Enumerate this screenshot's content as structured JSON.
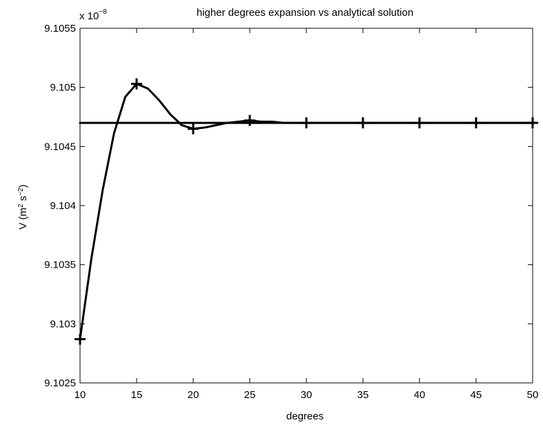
{
  "chart_data": {
    "type": "line",
    "title": "higher degrees expansion vs analytical solution",
    "xlabel": "degrees",
    "ylabel": {
      "base": "V (m",
      "sup1": "2",
      "mid": " s",
      "sup2": "−2",
      "end": ")"
    },
    "exponent_label": {
      "base": "x 10",
      "sup": "−8"
    },
    "xlim": [
      10,
      50
    ],
    "ylim": [
      9.1025,
      9.1055
    ],
    "x_ticks": [
      10,
      15,
      20,
      25,
      30,
      35,
      40,
      45,
      50
    ],
    "x_tick_labels": [
      "10",
      "15",
      "20",
      "25",
      "30",
      "35",
      "40",
      "45",
      "50"
    ],
    "y_ticks": [
      9.1025,
      9.103,
      9.1035,
      9.104,
      9.1045,
      9.105,
      9.1055
    ],
    "y_tick_labels": [
      "9.1025",
      "9.103",
      "9.1035",
      "9.104",
      "9.1045",
      "9.105",
      "9.1055"
    ],
    "grid": false,
    "legend": "none",
    "series": [
      {
        "values": [
          [
            10,
            9.10287
          ],
          [
            11,
            9.10355
          ],
          [
            12,
            9.10413
          ],
          [
            13,
            9.10461
          ],
          [
            14,
            9.10492
          ],
          [
            15,
            9.10503
          ],
          [
            16,
            9.10499
          ],
          [
            17,
            9.10489
          ],
          [
            18,
            9.10477
          ],
          [
            19,
            9.10468
          ],
          [
            20,
            9.10465
          ],
          [
            21,
            9.10466
          ],
          [
            22,
            9.10468
          ],
          [
            23,
            9.1047
          ],
          [
            24,
            9.10471
          ],
          [
            25,
            9.10472
          ],
          [
            26,
            9.10471
          ],
          [
            27,
            9.10471
          ],
          [
            28,
            9.1047
          ],
          [
            29,
            9.1047
          ],
          [
            30,
            9.1047
          ],
          [
            35,
            9.1047
          ],
          [
            40,
            9.1047
          ],
          [
            45,
            9.1047
          ],
          [
            50,
            9.1047
          ]
        ],
        "markers": [
          [
            10,
            9.10287
          ],
          [
            15,
            9.10503
          ],
          [
            20,
            9.10465
          ],
          [
            25,
            9.10472
          ],
          [
            30,
            9.1047
          ],
          [
            35,
            9.1047
          ],
          [
            40,
            9.1047
          ],
          [
            45,
            9.1047
          ],
          [
            50,
            9.1047
          ]
        ],
        "marker": "+",
        "color": "#000000"
      },
      {
        "values": [
          [
            10,
            9.1047
          ],
          [
            50,
            9.1047
          ]
        ],
        "color": "#000000"
      }
    ]
  }
}
